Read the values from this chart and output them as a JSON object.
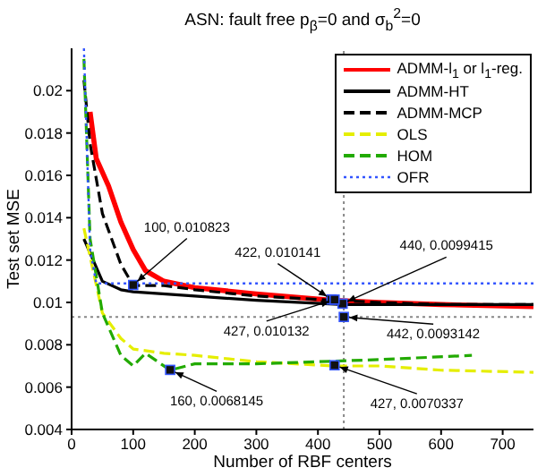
{
  "chart_data": {
    "type": "line",
    "title": "ASN: fault free p$_{β}$=0 and σ$_{b}$$^{2}$=0",
    "xlabel": "Number of RBF centers",
    "ylabel": "Test set MSE",
    "xlim": [
      0,
      750
    ],
    "xticks": [
      0,
      100,
      200,
      300,
      400,
      500,
      600,
      700
    ],
    "ylim": [
      0.004,
      0.022
    ],
    "yticks": [
      0.004,
      0.006,
      0.008,
      0.01,
      0.012,
      0.014,
      0.016,
      0.018,
      0.02
    ],
    "grid": false,
    "legend": "top right",
    "marker": "none",
    "series": [
      {
        "name": "ADMM-l$_{1}$ or l$_{1}$-reg.",
        "color": "#ff0000",
        "line_style": "solid",
        "x": [
          30,
          40,
          60,
          80,
          100,
          120,
          150,
          200,
          300,
          422,
          500,
          600,
          750
        ],
        "values": [
          0.019,
          0.0168,
          0.0155,
          0.0138,
          0.0125,
          0.0115,
          0.011,
          0.0107,
          0.0104,
          0.0101,
          0.01,
          0.0099,
          0.0098
        ]
      },
      {
        "name": "ADMM-HT",
        "color": "#000000",
        "line_style": "solid",
        "x": [
          20,
          50,
          80,
          100,
          200,
          300,
          440,
          600,
          750
        ],
        "values": [
          0.013,
          0.011,
          0.0106,
          0.0105,
          0.0103,
          0.0101,
          0.0099,
          0.0099,
          0.0099
        ]
      },
      {
        "name": "ADMM-MCP",
        "color": "#000000",
        "line_style": "dashed",
        "x": [
          20,
          30,
          50,
          80,
          100,
          150,
          200,
          300,
          427,
          500,
          600,
          750
        ],
        "values": [
          0.0205,
          0.0175,
          0.0142,
          0.0118,
          0.0108,
          0.0108,
          0.0106,
          0.0103,
          0.0101,
          0.01,
          0.0099,
          0.0099
        ]
      },
      {
        "name": "OLS",
        "color": "#e5ee00",
        "line_style": "dashed",
        "x": [
          20,
          50,
          80,
          100,
          150,
          200,
          300,
          427,
          500,
          600,
          750
        ],
        "values": [
          0.0135,
          0.0095,
          0.0083,
          0.0078,
          0.0076,
          0.0075,
          0.0072,
          0.007,
          0.007,
          0.0068,
          0.0067
        ]
      },
      {
        "name": "HOM",
        "color": "#22aa00",
        "line_style": "dashed",
        "x": [
          20,
          30,
          50,
          80,
          100,
          120,
          160,
          200,
          300,
          400,
          500,
          650
        ],
        "values": [
          0.0215,
          0.013,
          0.0095,
          0.0075,
          0.007,
          0.0076,
          0.0068,
          0.0071,
          0.0071,
          0.0072,
          0.0073,
          0.0075
        ]
      },
      {
        "name": "OFR",
        "color": "#3355ff",
        "line_style": "dotted",
        "x": [
          20,
          30,
          40,
          100,
          750
        ],
        "values": [
          0.022,
          0.0125,
          0.0109,
          0.0109,
          0.0109
        ]
      }
    ],
    "ref_lines": [
      {
        "axis": "x",
        "value": 442,
        "color": "#888888",
        "line_style": "dotted"
      },
      {
        "axis": "y",
        "value": 0.0093142,
        "color": "#888888",
        "line_style": "dotted"
      }
    ],
    "annotations": [
      {
        "text": "100, 0.010823",
        "x": 100,
        "y": 0.010823
      },
      {
        "text": "422, 0.010141",
        "x": 422,
        "y": 0.010141
      },
      {
        "text": "440, 0.0099415",
        "x": 440,
        "y": 0.0099415
      },
      {
        "text": "427, 0.010132",
        "x": 427,
        "y": 0.010132
      },
      {
        "text": "442, 0.0093142",
        "x": 442,
        "y": 0.0093142
      },
      {
        "text": "160, 0.0068145",
        "x": 160,
        "y": 0.0068145
      },
      {
        "text": "427, 0.0070337",
        "x": 427,
        "y": 0.0070337
      }
    ]
  }
}
